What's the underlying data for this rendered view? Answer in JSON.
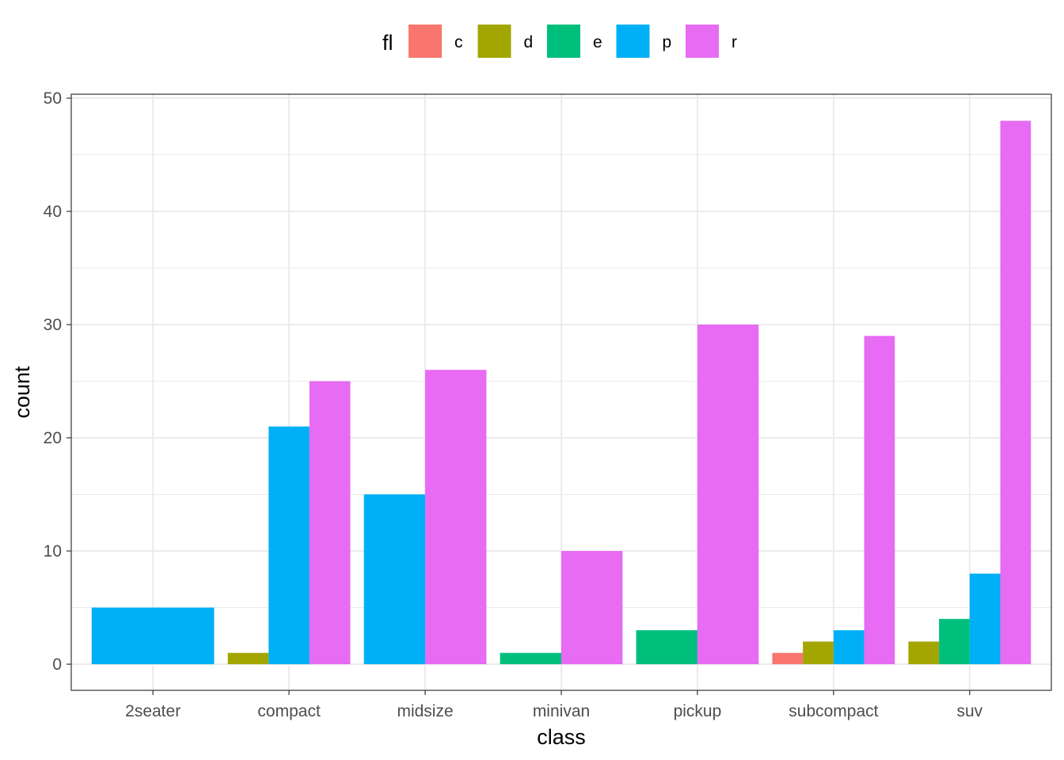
{
  "chart_data": {
    "type": "bar",
    "xlabel": "class",
    "ylabel": "count",
    "ylim": [
      0,
      50
    ],
    "yticks": [
      0,
      10,
      20,
      30,
      40,
      50
    ],
    "grid": true,
    "legend": {
      "title": "fl",
      "position": "top",
      "entries": [
        {
          "key": "c",
          "color": "#F8766D"
        },
        {
          "key": "d",
          "color": "#A3A500"
        },
        {
          "key": "e",
          "color": "#00BF7D"
        },
        {
          "key": "p",
          "color": "#00B0F6"
        },
        {
          "key": "r",
          "color": "#E76BF3"
        }
      ]
    },
    "categories": [
      "2seater",
      "compact",
      "midsize",
      "minivan",
      "pickup",
      "subcompact",
      "suv"
    ],
    "groups": [
      {
        "category": "2seater",
        "bars": [
          {
            "fl": "p",
            "value": 5
          }
        ]
      },
      {
        "category": "compact",
        "bars": [
          {
            "fl": "d",
            "value": 1
          },
          {
            "fl": "p",
            "value": 21
          },
          {
            "fl": "r",
            "value": 25
          }
        ]
      },
      {
        "category": "midsize",
        "bars": [
          {
            "fl": "p",
            "value": 15
          },
          {
            "fl": "r",
            "value": 26
          }
        ]
      },
      {
        "category": "minivan",
        "bars": [
          {
            "fl": "e",
            "value": 1
          },
          {
            "fl": "r",
            "value": 10
          }
        ]
      },
      {
        "category": "pickup",
        "bars": [
          {
            "fl": "e",
            "value": 3
          },
          {
            "fl": "r",
            "value": 30
          }
        ]
      },
      {
        "category": "subcompact",
        "bars": [
          {
            "fl": "c",
            "value": 1
          },
          {
            "fl": "d",
            "value": 2
          },
          {
            "fl": "p",
            "value": 3
          },
          {
            "fl": "r",
            "value": 29
          }
        ]
      },
      {
        "category": "suv",
        "bars": [
          {
            "fl": "d",
            "value": 2
          },
          {
            "fl": "e",
            "value": 4
          },
          {
            "fl": "p",
            "value": 8
          },
          {
            "fl": "r",
            "value": 48
          }
        ]
      }
    ]
  }
}
